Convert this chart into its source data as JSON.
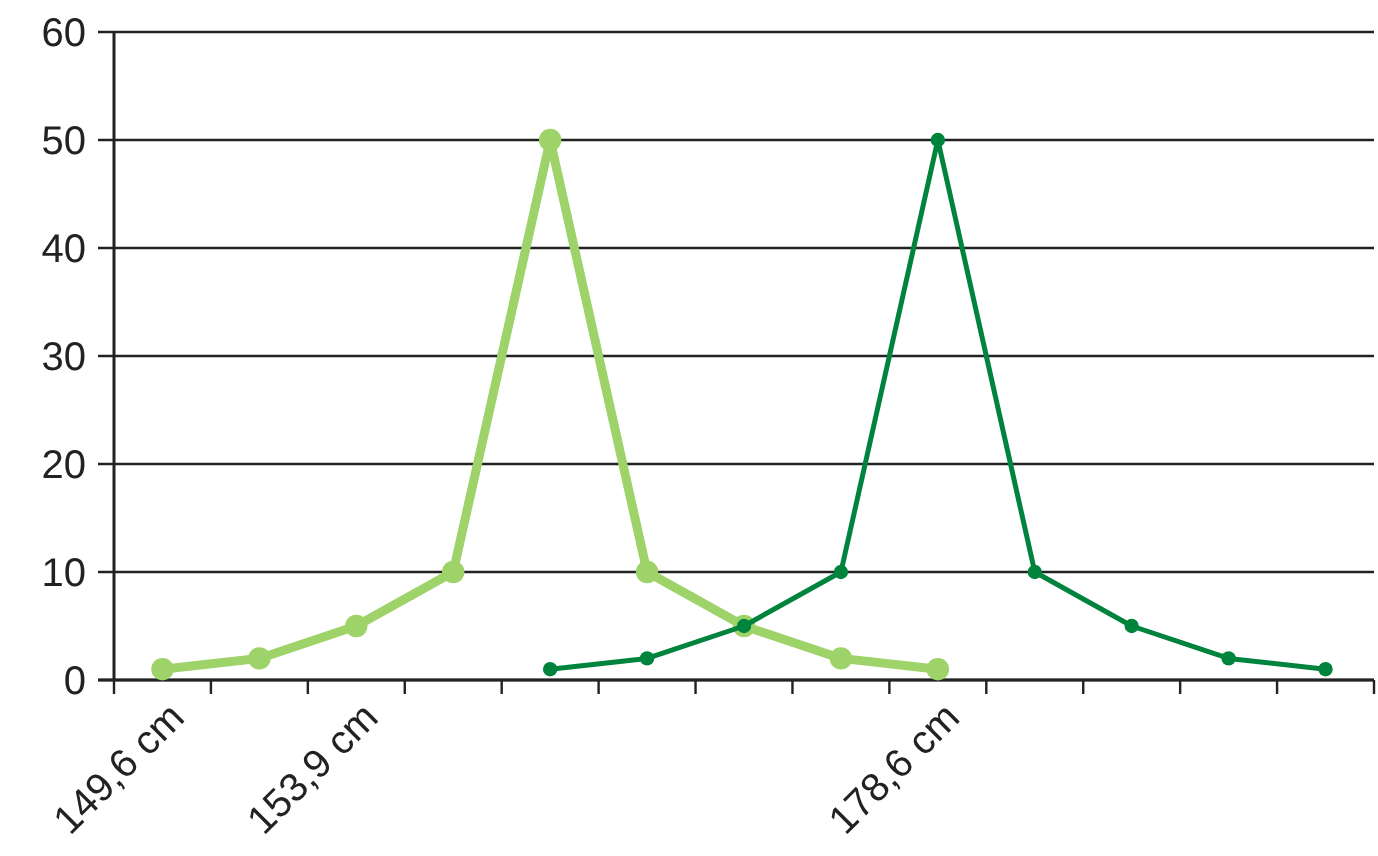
{
  "chart_data": {
    "type": "line",
    "categories": [
      "149,6 cm",
      null,
      "153,9 cm",
      null,
      null,
      null,
      null,
      null,
      "178,6 cm",
      null,
      null,
      null,
      null
    ],
    "series": [
      {
        "color": "#9ed36a",
        "values": [
          1,
          2,
          5,
          10,
          50,
          10,
          5,
          2,
          1,
          null,
          null,
          null,
          null
        ]
      },
      {
        "color": "#00843d",
        "values": [
          null,
          null,
          null,
          null,
          1,
          2,
          5,
          10,
          50,
          10,
          5,
          2,
          1
        ]
      }
    ],
    "ylim": [
      0,
      60
    ],
    "yticks": [
      0,
      10,
      20,
      30,
      40,
      50,
      60
    ],
    "grid": "y",
    "marker": "circle",
    "line_style": "solid"
  }
}
